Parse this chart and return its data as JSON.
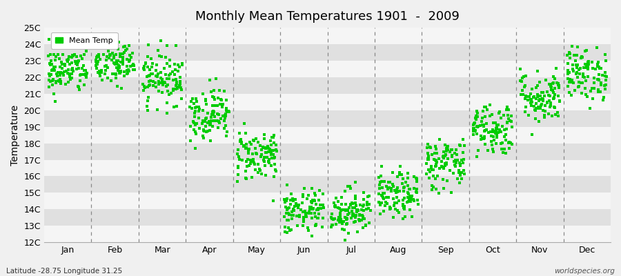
{
  "title": "Monthly Mean Temperatures 1901  -  2009",
  "ylabel": "Temperature",
  "xlabel_labels": [
    "Jan",
    "Feb",
    "Mar",
    "Apr",
    "May",
    "Jun",
    "Jul",
    "Aug",
    "Sep",
    "Oct",
    "Nov",
    "Dec"
  ],
  "ytick_labels": [
    "12C",
    "13C",
    "14C",
    "15C",
    "16C",
    "17C",
    "18C",
    "19C",
    "20C",
    "21C",
    "22C",
    "23C",
    "24C",
    "25C"
  ],
  "ytick_values": [
    12,
    13,
    14,
    15,
    16,
    17,
    18,
    19,
    20,
    21,
    22,
    23,
    24,
    25
  ],
  "ylim": [
    12,
    25
  ],
  "dot_color": "#00cc00",
  "dot_size": 10,
  "background_color": "#f0f0f0",
  "band_light": "#f5f5f5",
  "band_dark": "#e0e0e0",
  "grid_color": "#888888",
  "footer_left": "Latitude -28.75 Longitude 31.25",
  "footer_right": "worldspecies.org",
  "legend_label": "Mean Temp",
  "mean_temps": [
    22.4,
    22.8,
    22.0,
    19.8,
    17.3,
    13.8,
    13.9,
    14.8,
    16.8,
    18.9,
    20.8,
    22.2
  ],
  "std_temps": [
    0.7,
    0.7,
    0.8,
    0.8,
    0.8,
    0.7,
    0.7,
    0.7,
    0.8,
    0.8,
    0.8,
    0.8
  ],
  "n_years": 109
}
